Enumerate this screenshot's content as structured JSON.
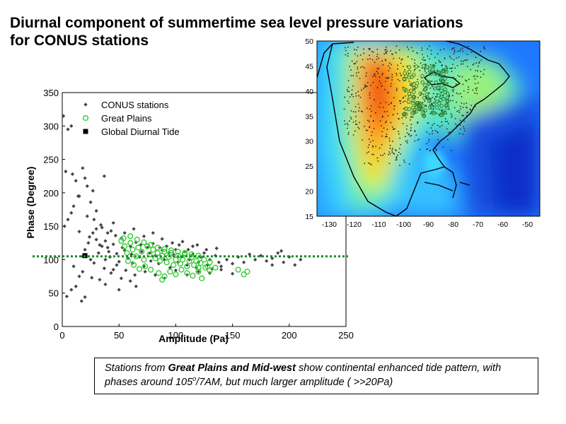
{
  "title": {
    "line1": "Diurnal component of summertime sea level pressure variations",
    "line2": "for CONUS stations"
  },
  "caption": {
    "part1": "Stations from ",
    "bold": "Great Plains and Mid-west",
    "part2": " show continental enhanced tide pattern, with phases around 105",
    "degree": "o",
    "part3": "/7AM, but much larger amplitude ( >>20Pa)"
  },
  "chart_data": [
    {
      "type": "scatter",
      "xlabel": "Amplitude (Pa)",
      "ylabel": "Phase (Degree)",
      "xlim": [
        0,
        250
      ],
      "ylim": [
        0,
        350
      ],
      "xticks": [
        0,
        50,
        100,
        150,
        200,
        250
      ],
      "yticks": [
        0,
        50,
        100,
        150,
        200,
        250,
        300,
        350
      ],
      "legend_position": "top-left",
      "reference_line": {
        "y": 105,
        "style": "dotted",
        "color": "#1a8a2a"
      },
      "series": [
        {
          "name": "CONUS stations",
          "marker": "diamond",
          "color": "#444444",
          "points": [
            [
              1,
              315
            ],
            [
              3,
              232
            ],
            [
              5,
              295
            ],
            [
              8,
              300
            ],
            [
              9,
              228
            ],
            [
              12,
              218
            ],
            [
              15,
              195
            ],
            [
              20,
              222
            ],
            [
              22,
              210
            ],
            [
              27,
              203
            ],
            [
              37,
              225
            ],
            [
              18,
              237
            ],
            [
              14,
              195
            ],
            [
              2,
              150
            ],
            [
              5,
              160
            ],
            [
              8,
              170
            ],
            [
              10,
              180
            ],
            [
              15,
              142
            ],
            [
              22,
              165
            ],
            [
              28,
              160
            ],
            [
              35,
              148
            ],
            [
              40,
              140
            ],
            [
              45,
              155
            ],
            [
              30,
              173
            ],
            [
              25,
              186
            ],
            [
              4,
              45
            ],
            [
              8,
              55
            ],
            [
              12,
              60
            ],
            [
              15,
              75
            ],
            [
              18,
              82
            ],
            [
              10,
              90
            ],
            [
              20,
              44
            ],
            [
              17,
              38
            ],
            [
              26,
              73
            ],
            [
              33,
              70
            ],
            [
              38,
              63
            ],
            [
              45,
              85
            ],
            [
              52,
              72
            ],
            [
              60,
              68
            ],
            [
              65,
              60
            ],
            [
              50,
              55
            ],
            [
              18,
              105
            ],
            [
              20,
              115
            ],
            [
              23,
              125
            ],
            [
              25,
              100
            ],
            [
              28,
              95
            ],
            [
              30,
              130
            ],
            [
              32,
              110
            ],
            [
              35,
              120
            ],
            [
              38,
              100
            ],
            [
              40,
              118
            ],
            [
              42,
              104
            ],
            [
              45,
              123
            ],
            [
              48,
              109
            ],
            [
              50,
              97
            ],
            [
              52,
              132
            ],
            [
              55,
              114
            ],
            [
              58,
              102
            ],
            [
              60,
              120
            ],
            [
              62,
              95
            ],
            [
              65,
              126
            ],
            [
              68,
              104
            ],
            [
              70,
              112
            ],
            [
              72,
              90
            ],
            [
              75,
              118
            ],
            [
              78,
              98
            ],
            [
              80,
              124
            ],
            [
              82,
              106
            ],
            [
              85,
              94
            ],
            [
              88,
              114
            ],
            [
              90,
              100
            ],
            [
              92,
              120
            ],
            [
              95,
              88
            ],
            [
              98,
              108
            ],
            [
              100,
              115
            ],
            [
              102,
              96
            ],
            [
              105,
              104
            ],
            [
              108,
              112
            ],
            [
              110,
              92
            ],
            [
              112,
              100
            ],
            [
              115,
              108
            ],
            [
              118,
              88
            ],
            [
              120,
              96
            ],
            [
              122,
              104
            ],
            [
              125,
              110
            ],
            [
              128,
              92
            ],
            [
              130,
              100
            ],
            [
              132,
              86
            ],
            [
              135,
              106
            ],
            [
              138,
              96
            ],
            [
              140,
              90
            ],
            [
              145,
              100
            ],
            [
              150,
              94
            ],
            [
              155,
              104
            ],
            [
              160,
              96
            ],
            [
              165,
              108
            ],
            [
              170,
              100
            ],
            [
              175,
              106
            ],
            [
              180,
              98
            ],
            [
              185,
              102
            ],
            [
              190,
              110
            ],
            [
              195,
              96
            ],
            [
              200,
              104
            ],
            [
              205,
              92
            ],
            [
              210,
              100
            ],
            [
              185,
              92
            ],
            [
              193,
              113
            ],
            [
              27,
              140
            ],
            [
              30,
              146
            ],
            [
              34,
              152
            ],
            [
              38,
              128
            ],
            [
              43,
              143
            ],
            [
              47,
              136
            ],
            [
              55,
              140
            ],
            [
              63,
              146
            ],
            [
              72,
              135
            ],
            [
              80,
              140
            ],
            [
              88,
              131
            ],
            [
              97,
              125
            ],
            [
              106,
              127
            ],
            [
              115,
              120
            ],
            [
              37,
              87
            ],
            [
              43,
              80
            ],
            [
              48,
              92
            ],
            [
              56,
              84
            ],
            [
              64,
              77
            ],
            [
              73,
              82
            ],
            [
              82,
              77
            ],
            [
              90,
              72
            ],
            [
              100,
              84
            ],
            [
              110,
              77
            ],
            [
              120,
              82
            ],
            [
              130,
              80
            ],
            [
              140,
              85
            ],
            [
              150,
              79
            ],
            [
              24,
              134
            ],
            [
              33,
              122
            ],
            [
              41,
              112
            ],
            [
              53,
              118
            ],
            [
              61,
              108
            ],
            [
              69,
              122
            ],
            [
              77,
              110
            ],
            [
              86,
              118
            ],
            [
              94,
              110
            ],
            [
              103,
              122
            ],
            [
              111,
              115
            ],
            [
              119,
              122
            ],
            [
              127,
              115
            ],
            [
              136,
              117
            ]
          ]
        },
        {
          "name": "Great Plains",
          "marker": "circle",
          "color": "#33cc33",
          "points": [
            [
              52,
              128
            ],
            [
              55,
              120
            ],
            [
              57,
              110
            ],
            [
              60,
              125
            ],
            [
              62,
              115
            ],
            [
              65,
              105
            ],
            [
              67,
              118
            ],
            [
              70,
              112
            ],
            [
              72,
              100
            ],
            [
              75,
              120
            ],
            [
              77,
              108
            ],
            [
              80,
              115
            ],
            [
              82,
              102
            ],
            [
              84,
              110
            ],
            [
              86,
              98
            ],
            [
              88,
              106
            ],
            [
              90,
              112
            ],
            [
              92,
              96
            ],
            [
              94,
              104
            ],
            [
              96,
              110
            ],
            [
              98,
              92
            ],
            [
              100,
              100
            ],
            [
              102,
              106
            ],
            [
              104,
              94
            ],
            [
              106,
              100
            ],
            [
              108,
              108
            ],
            [
              110,
              90
            ],
            [
              112,
              98
            ],
            [
              114,
              104
            ],
            [
              116,
              92
            ],
            [
              118,
              98
            ],
            [
              120,
              88
            ],
            [
              122,
              95
            ],
            [
              125,
              100
            ],
            [
              128,
              90
            ],
            [
              130,
              96
            ],
            [
              58,
              98
            ],
            [
              63,
              92
            ],
            [
              68,
              86
            ],
            [
              73,
              90
            ],
            [
              78,
              85
            ],
            [
              85,
              80
            ],
            [
              88,
              70
            ],
            [
              90,
              75
            ],
            [
              95,
              82
            ],
            [
              100,
              78
            ],
            [
              105,
              85
            ],
            [
              110,
              80
            ],
            [
              115,
              76
            ],
            [
              120,
              82
            ],
            [
              123,
              72
            ],
            [
              126,
              88
            ],
            [
              130,
              84
            ],
            [
              135,
              88
            ],
            [
              155,
              85
            ],
            [
              160,
              78
            ],
            [
              163,
              82
            ],
            [
              54,
              132
            ],
            [
              60,
              135
            ],
            [
              66,
              130
            ],
            [
              72,
              126
            ],
            [
              78,
              122
            ],
            [
              84,
              118
            ],
            [
              90,
              116
            ],
            [
              96,
              114
            ],
            [
              102,
              112
            ],
            [
              108,
              110
            ],
            [
              114,
              108
            ],
            [
              120,
              106
            ]
          ]
        },
        {
          "name": "Global Diurnal Tide",
          "marker": "square",
          "color": "#000000",
          "points": [
            [
              20,
              106
            ]
          ]
        }
      ]
    },
    {
      "type": "heatmap",
      "xlim": [
        -135,
        -45
      ],
      "ylim": [
        15,
        50
      ],
      "xticks": [
        -130,
        -120,
        -110,
        -100,
        -90,
        -80,
        -70,
        -60,
        -50
      ],
      "yticks": [
        15,
        20,
        25,
        30,
        35,
        40,
        45,
        50
      ],
      "colormap": "jet",
      "overlay": "station locations with North America coastline"
    }
  ]
}
